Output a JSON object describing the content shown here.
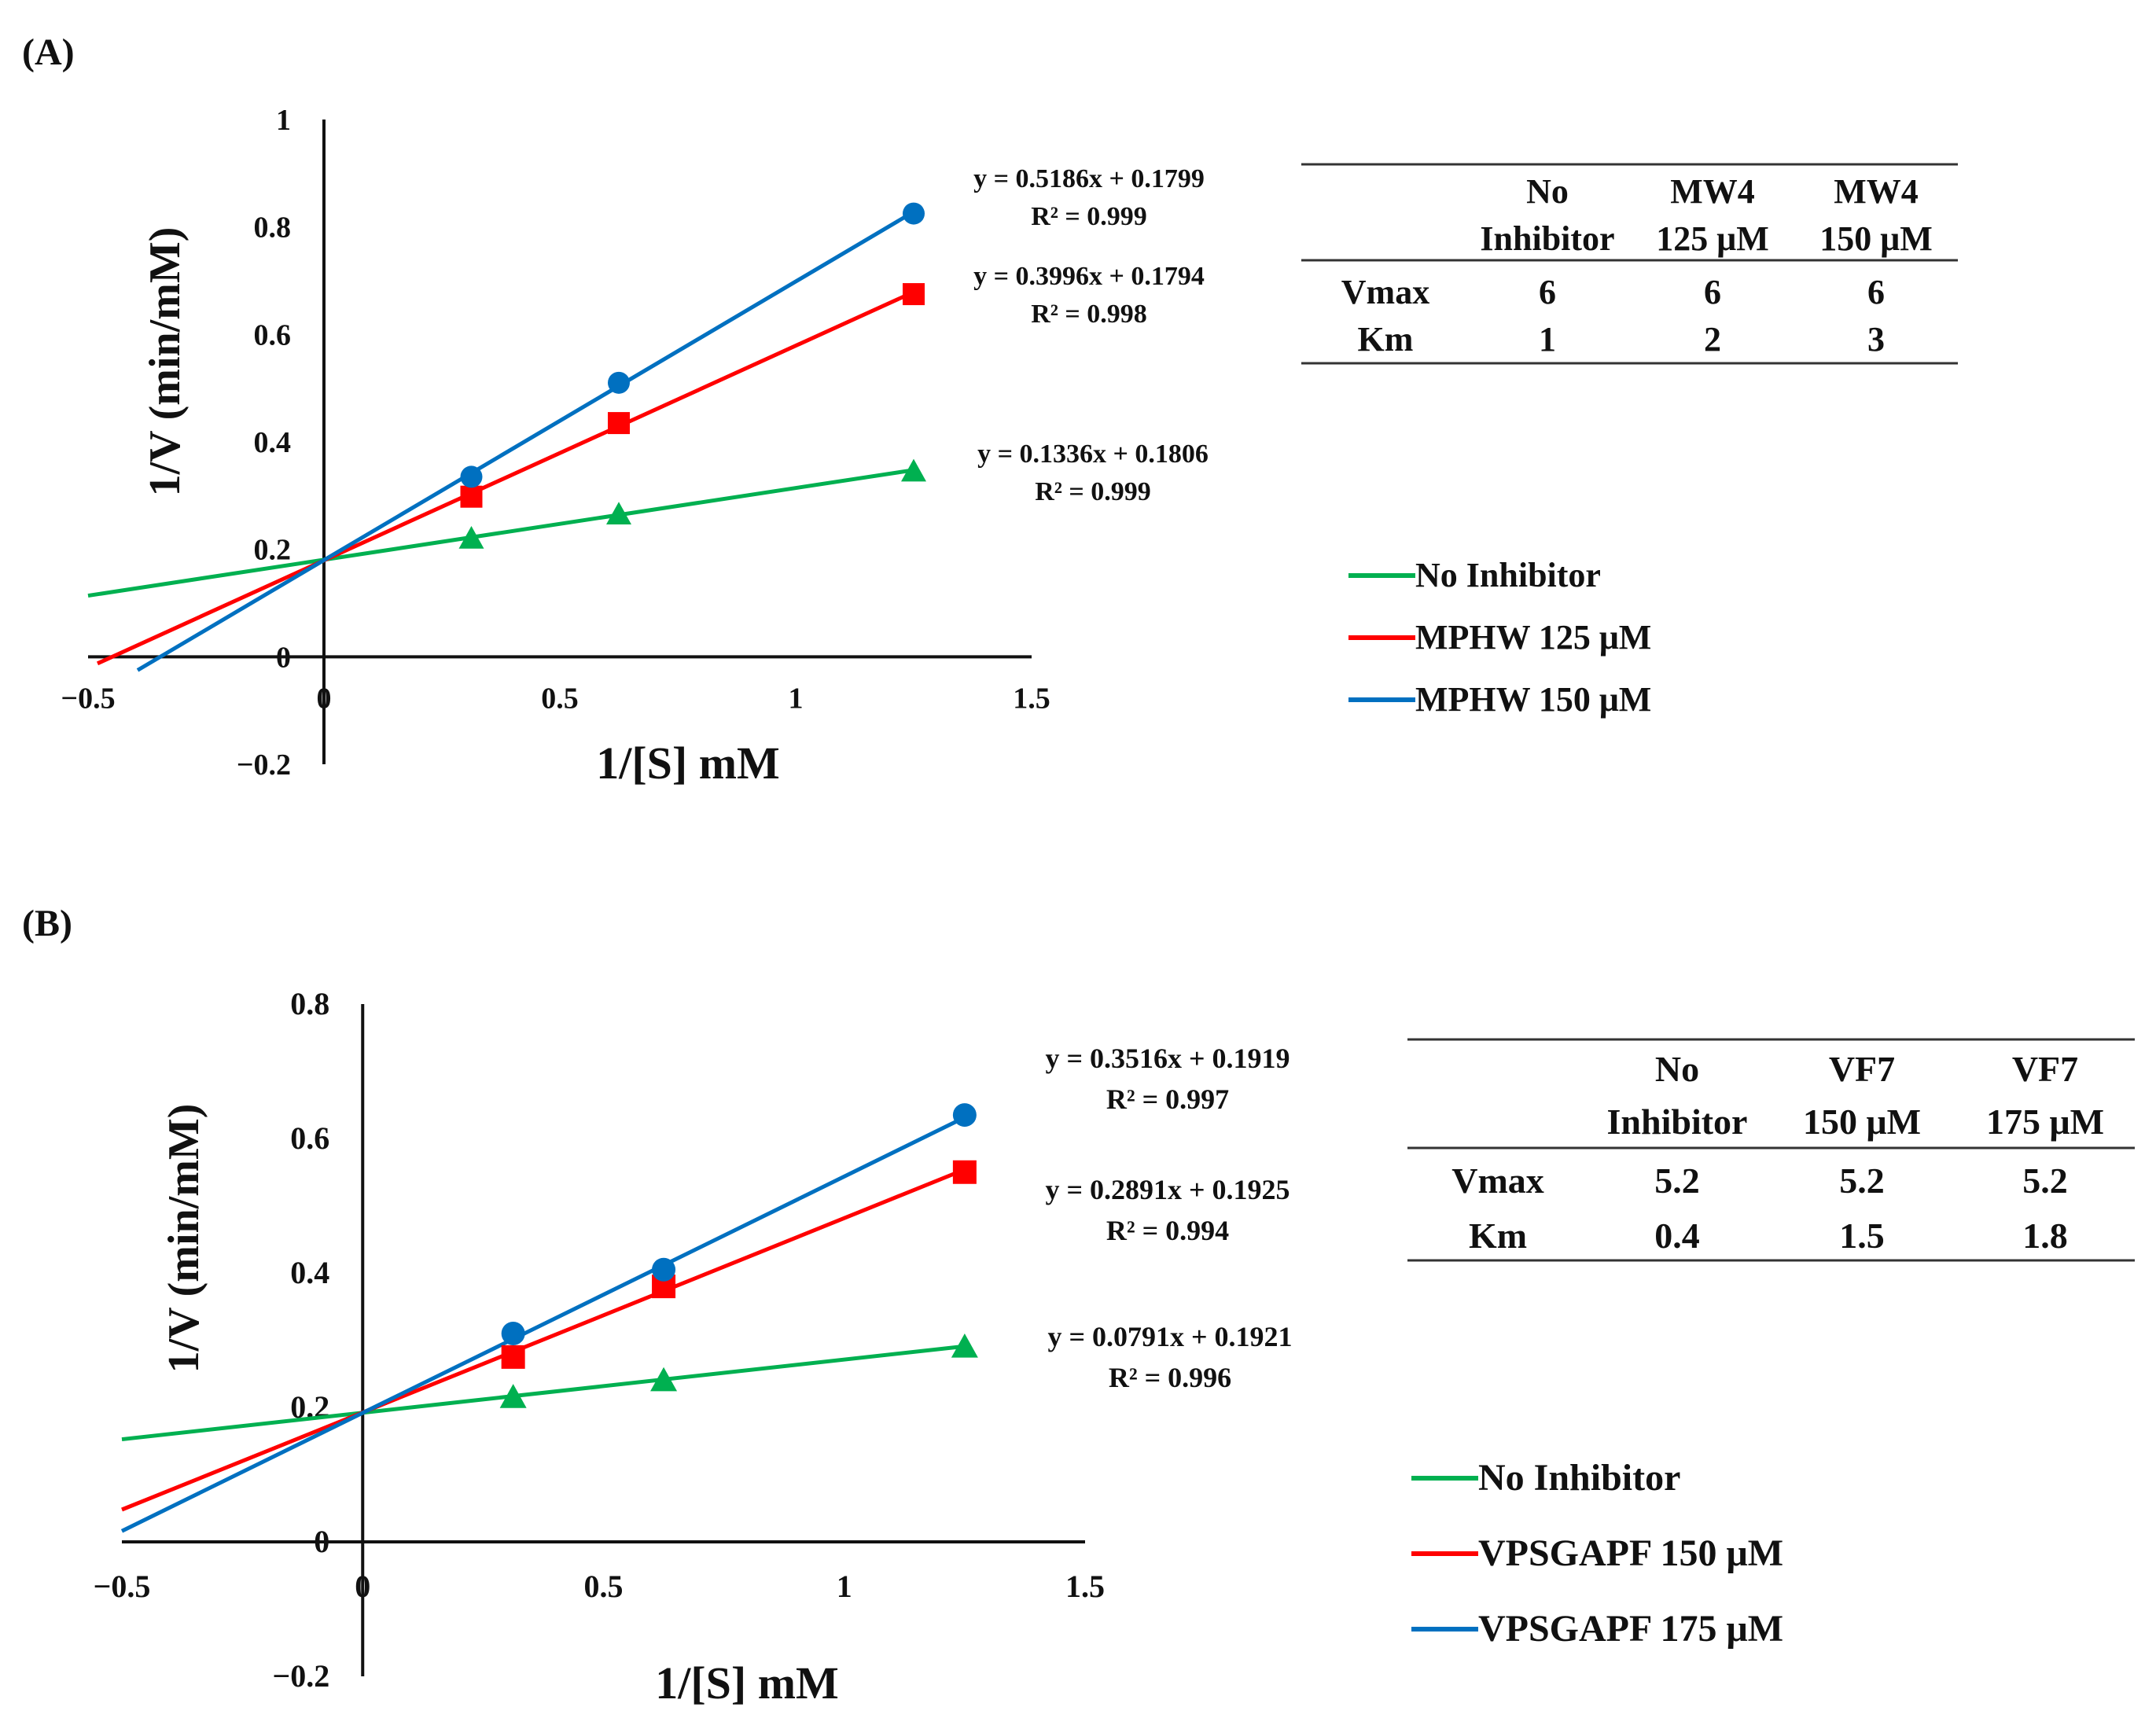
{
  "chart_data": [
    {
      "type": "line",
      "panel_label": "(A)",
      "xlabel": "1/[S] mM",
      "ylabel": "1/V (min/mM)",
      "xlim": [
        -0.5,
        1.5
      ],
      "ylim": [
        -0.2,
        1
      ],
      "x_ticks": [
        {
          "value": -0.5,
          "label": "−0.5"
        },
        {
          "value": 0,
          "label": "0"
        },
        {
          "value": 0.5,
          "label": "0.5"
        },
        {
          "value": 1,
          "label": "1"
        },
        {
          "value": 1.5,
          "label": "1.5"
        }
      ],
      "y_ticks": [
        {
          "value": -0.2,
          "label": "−0.2"
        },
        {
          "value": 0,
          "label": "0"
        },
        {
          "value": 0.2,
          "label": "0.2"
        },
        {
          "value": 0.4,
          "label": "0.4"
        },
        {
          "value": 0.6,
          "label": "0.6"
        },
        {
          "value": 0.8,
          "label": "0.8"
        },
        {
          "value": 1,
          "label": "1"
        }
      ],
      "series": [
        {
          "name": "No Inhibitor",
          "color": "#00b050",
          "marker": "triangle",
          "slope": 0.1336,
          "intercept": 0.1806,
          "line_x": [
            -0.5,
            1.25
          ],
          "x": [
            0.3125,
            0.625,
            1.25
          ],
          "y": [
            0.22,
            0.265,
            0.345
          ],
          "equation": "y = 0.1336x + 0.1806",
          "r2": "R² = 0.999"
        },
        {
          "name": "MPHW 125 μM",
          "color": "#ff0000",
          "marker": "square",
          "slope": 0.3996,
          "intercept": 0.1794,
          "line_x": [
            -0.48,
            1.25
          ],
          "x": [
            0.3125,
            0.625,
            1.25
          ],
          "y": [
            0.298,
            0.435,
            0.675
          ],
          "equation": "y = 0.3996x + 0.1794",
          "r2": "R² = 0.998"
        },
        {
          "name": "MPHW 150 μM",
          "color": "#0070c0",
          "marker": "circle",
          "slope": 0.5186,
          "intercept": 0.1799,
          "line_x": [
            -0.395,
            1.25
          ],
          "x": [
            0.3125,
            0.625,
            1.25
          ],
          "y": [
            0.335,
            0.51,
            0.825
          ],
          "equation": "y = 0.5186x + 0.1799",
          "r2": "R² = 0.999"
        }
      ],
      "table": {
        "headers": [
          [
            "",
            "No",
            "MW4",
            "MW4"
          ],
          [
            "",
            "Inhibitor",
            "125 μM",
            "150 μM"
          ]
        ],
        "rows": [
          [
            "Vmax",
            "6",
            "6",
            "6"
          ],
          [
            "Km",
            "1",
            "2",
            "3"
          ]
        ]
      }
    },
    {
      "type": "line",
      "panel_label": "(B)",
      "xlabel": "1/[S] mM",
      "ylabel": "1/V (min/mM)",
      "xlim": [
        -0.5,
        1.5
      ],
      "ylim": [
        -0.2,
        0.8
      ],
      "x_ticks": [
        {
          "value": -0.5,
          "label": "−0.5"
        },
        {
          "value": 0,
          "label": "0"
        },
        {
          "value": 0.5,
          "label": "0.5"
        },
        {
          "value": 1,
          "label": "1"
        },
        {
          "value": 1.5,
          "label": "1.5"
        }
      ],
      "y_ticks": [
        {
          "value": -0.2,
          "label": "−0.2"
        },
        {
          "value": 0,
          "label": "0"
        },
        {
          "value": 0.2,
          "label": "0.2"
        },
        {
          "value": 0.4,
          "label": "0.4"
        },
        {
          "value": 0.6,
          "label": "0.6"
        },
        {
          "value": 0.8,
          "label": "0.8"
        }
      ],
      "series": [
        {
          "name": "No Inhibitor",
          "color": "#00b050",
          "marker": "triangle",
          "slope": 0.0791,
          "intercept": 0.1921,
          "line_x": [
            -0.5,
            1.25
          ],
          "x": [
            0.3125,
            0.625,
            1.25
          ],
          "y": [
            0.215,
            0.24,
            0.29
          ],
          "equation": "y = 0.0791x + 0.1921",
          "r2": "R² = 0.996"
        },
        {
          "name": "VPSGAPF 150 μM",
          "color": "#ff0000",
          "marker": "square",
          "slope": 0.2891,
          "intercept": 0.1925,
          "line_x": [
            -0.5,
            1.25
          ],
          "x": [
            0.3125,
            0.625,
            1.25
          ],
          "y": [
            0.275,
            0.38,
            0.55
          ],
          "equation": "y = 0.2891x + 0.1925",
          "r2": "R² = 0.994"
        },
        {
          "name": "VPSGAPF 175 μM",
          "color": "#0070c0",
          "marker": "circle",
          "slope": 0.3516,
          "intercept": 0.1919,
          "line_x": [
            -0.5,
            1.25
          ],
          "x": [
            0.3125,
            0.625,
            1.25
          ],
          "y": [
            0.31,
            0.405,
            0.635
          ],
          "equation": "y = 0.3516x + 0.1919",
          "r2": "R² = 0.997"
        }
      ],
      "table": {
        "headers": [
          [
            "",
            "No",
            "VF7",
            "VF7"
          ],
          [
            "",
            "Inhibitor",
            "150 μM",
            "175 μM"
          ]
        ],
        "rows": [
          [
            "Vmax",
            "5.2",
            "5.2",
            "5.2"
          ],
          [
            "Km",
            "0.4",
            "1.5",
            "1.8"
          ]
        ]
      }
    }
  ]
}
